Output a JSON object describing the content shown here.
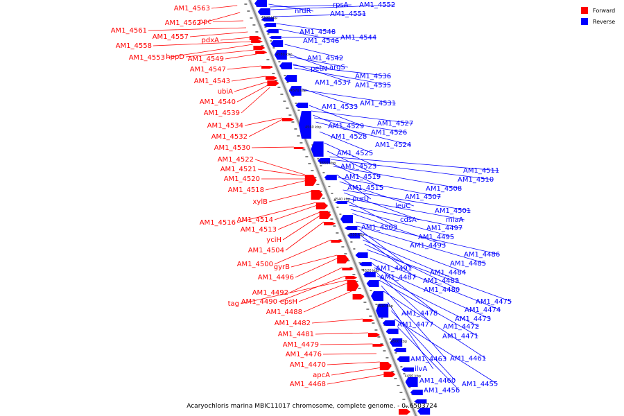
{
  "caption": "Acaryochloris marina MBIC11017 chromosome, complete genome. - 0..6503724",
  "legend": [
    {
      "label": "Forward",
      "color": "#ff0000"
    },
    {
      "label": "Reverse",
      "color": "#0000ff"
    }
  ],
  "colors": {
    "forward": "#ff0000",
    "reverse": "#0000ff",
    "backbone": "#888888"
  },
  "ticks": [
    "4590 kbp",
    "4580 kbp",
    "4570 kbp",
    "4560 kbp",
    "4550 kbp",
    "4540 kbp",
    "4530 kbp",
    "4520 kbp",
    "4510 kbp",
    "4500 kbp",
    "4490 kbp"
  ],
  "forward_labels": [
    "AM1_4563",
    "AM1_4562",
    "ppc",
    "AM1_4561",
    "AM1_4557",
    "pdxA",
    "AM1_4558",
    "AM1_4553",
    "hppD",
    "AM1_4549",
    "AM1_4547",
    "AM1_4543",
    "ubiA",
    "AM1_4540",
    "AM1_4539",
    "AM1_4534",
    "AM1_4532",
    "AM1_4530",
    "AM1_4522",
    "AM1_4521",
    "AM1_4520",
    "AM1_4518",
    "xylB",
    "AM1_4516",
    "AM1_4514",
    "AM1_4513",
    "yciH",
    "AM1_4504",
    "AM1_4500",
    "gyrB",
    "AM1_4496",
    "AM1_4492",
    "AM1_4490",
    "tag",
    "epsH",
    "AM1_4488",
    "AM1_4482",
    "AM1_4481",
    "AM1_4479",
    "AM1_4476",
    "AM1_4470",
    "apcA",
    "AM1_4468"
  ],
  "reverse_labels": [
    "nrdR",
    "rpsA",
    "AM1_4552",
    "AM1_4551",
    "AM1_4548",
    "AM1_4546",
    "AM1_4544",
    "AM1_4542",
    "petN",
    "argS",
    "AM1_4537",
    "AM1_4536",
    "AM1_4535",
    "AM1_4533",
    "AM1_4531",
    "AM1_4529",
    "AM1_4527",
    "AM1_4528",
    "AM1_4526",
    "AM1_4524",
    "AM1_4525",
    "AM1_4523",
    "AM1_4519",
    "AM1_4511",
    "AM1_4510",
    "AM1_4515",
    "AM1_4508",
    "purU",
    "AM1_4507",
    "leuC",
    "AM1_4501",
    "cdsA",
    "miaA",
    "AM1_4503",
    "AM1_4497",
    "AM1_4495",
    "AM1_4493",
    "AM1_4486",
    "AM1_4485",
    "AM1_4491",
    "AM1_4484",
    "AM1_4487",
    "AM1_4483",
    "AM1_4480",
    "AM1_4475",
    "AM1_4474",
    "AM1_4478",
    "AM1_4473",
    "AM1_4477",
    "AM1_4472",
    "AM1_4471",
    "AM1_4463",
    "AM1_4461",
    "ilvA",
    "AM1_4460",
    "AM1_4455",
    "AM1_4456"
  ]
}
